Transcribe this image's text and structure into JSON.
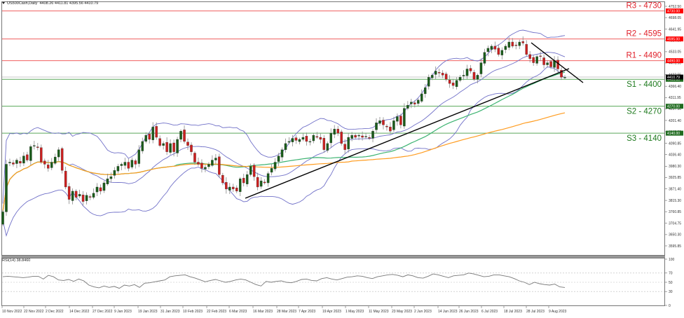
{
  "header": {
    "symbol": "US500Cash,Daily",
    "ohlc": "4408.26 4411.81 4395.56 4410.79"
  },
  "rsi_header": "RSI(14) 38.8460",
  "colors": {
    "resistance": "#f06060",
    "resistance_tag": "#ff0000",
    "support": "#5aa85a",
    "support_tag": "#1f6b1f",
    "support_label": "#1e7a1e",
    "resistance_label": "#e0202a",
    "bull": "#1a5c1a",
    "bear": "#cc1f1f",
    "wick": "#888888",
    "bollinger": "#7070c8",
    "ma_fast": "#3cb371",
    "ma_slow": "#ff9c20",
    "trendline": "#000000",
    "rsi_line": "#777777",
    "current_price_line": "#c8c8c8"
  },
  "chart_data": [
    {
      "type": "candlestick",
      "title": "US500Cash,Daily",
      "subtitle": "4408.26 4411.81 4395.56 4410.79",
      "ylim": [
        3595.85,
        4780
      ],
      "yticks": [
        4752.5,
        4698.05,
        4641.95,
        4587.5,
        4533.05,
        4478.9,
        4422.55,
        4366.4,
        4311.95,
        4257.5,
        4201.4,
        4146.9,
        4090.85,
        4036.4,
        3980.3,
        3925.85,
        3871.4,
        3815.3,
        3760.85,
        3704.75,
        3650.3,
        3595.85
      ],
      "xticks": [
        "10 Nov 2022",
        "22 Nov 2022",
        "2 Dec 2022",
        "14 Dec 2022",
        "27 Dec 2022",
        "9 Jan 2023",
        "19 Jan 2023",
        "31 Jan 2023",
        "10 Feb 2023",
        "22 Feb 2023",
        "6 Mar 2023",
        "16 Mar 2023",
        "28 Mar 2023",
        "7 Apr 2023",
        "19 Apr 2023",
        "1 May 2023",
        "11 May 2023",
        "23 May 2023",
        "2 Jun 2023",
        "14 Jun 2023",
        "26 Jun 2023",
        "6 Jul 2023",
        "18 Jul 2023",
        "28 Jul 2023",
        "9 Aug 2023"
      ],
      "levels": [
        {
          "name": "R3",
          "label": "R3 - 4730",
          "value": 4730.0,
          "tag": "4730.00",
          "kind": "resistance"
        },
        {
          "name": "R2",
          "label": "R2 - 4595",
          "value": 4595.0,
          "tag": "4595.00",
          "kind": "resistance"
        },
        {
          "name": "R1",
          "label": "R1 - 4490",
          "value": 4490.0,
          "tag": "4490.00",
          "kind": "resistance"
        },
        {
          "name": "S1",
          "label": "S1 - 4400",
          "value": 4400.0,
          "tag": "4400.00",
          "kind": "support"
        },
        {
          "name": "S2",
          "label": "S2 - 4270",
          "value": 4270.0,
          "tag": "4270.00",
          "kind": "support"
        },
        {
          "name": "S3",
          "label": "S3 - 4140",
          "value": 4140.0,
          "tag": "4140.00",
          "kind": "support"
        }
      ],
      "current_price": 4410.79,
      "indicators": [
        "Bollinger Bands (upper/middle/lower)",
        "Moving average fast (green)",
        "Moving average slow (orange)"
      ],
      "trendlines": [
        {
          "name": "ascending support",
          "from": [
            "16 Mar 2023",
            3860
          ],
          "to": [
            "11 Aug 2023",
            4470
          ]
        },
        {
          "name": "descending resistance",
          "from": [
            "27 Jul 2023",
            4600
          ],
          "to": [
            "16 Aug 2023",
            4400
          ]
        }
      ],
      "approx_closes": [
        3760,
        3990,
        4000,
        3990,
        4010,
        3995,
        4030,
        4010,
        4075,
        4080,
        4070,
        4000,
        3990,
        3970,
        4000,
        4025,
        4060,
        3960,
        3880,
        3820,
        3860,
        3830,
        3845,
        3810,
        3840,
        3830,
        3850,
        3880,
        3860,
        3900,
        3920,
        3930,
        3960,
        3980,
        3990,
        4000,
        3970,
        4010,
        3990,
        4060,
        4100,
        4130,
        4110,
        4170,
        4120,
        4080,
        4090,
        4050,
        4090,
        4050,
        4110,
        4150,
        4100,
        4080,
        4050,
        4000,
        3990,
        3970,
        3975,
        3990,
        4010,
        4020,
        3940,
        3900,
        3870,
        3880,
        3870,
        3860,
        3920,
        3900,
        3940,
        3980,
        3930,
        3880,
        3910,
        3900,
        3945,
        3970,
        4000,
        4030,
        4060,
        4090,
        4100,
        4115,
        4105,
        4110,
        4120,
        4100,
        4100,
        4130,
        4120,
        4110,
        4060,
        4090,
        4140,
        4160,
        4140,
        4090,
        4060,
        4120,
        4130,
        4120,
        4130,
        4120,
        4125,
        4115,
        4150,
        4190,
        4200,
        4180,
        4170,
        4150,
        4200,
        4220,
        4180,
        4260,
        4275,
        4290,
        4280,
        4300,
        4330,
        4360,
        4410,
        4420,
        4440,
        4430,
        4420,
        4400,
        4380,
        4370,
        4395,
        4410,
        4420,
        4450,
        4440,
        4400,
        4420,
        4480,
        4530,
        4550,
        4560,
        4545,
        4520,
        4540,
        4560,
        4580,
        4560,
        4565,
        4580,
        4575,
        4520,
        4500,
        4480,
        4510,
        4510,
        4470,
        4480,
        4460,
        4490,
        4450,
        4410,
        4410
      ]
    },
    {
      "type": "line",
      "title": "RSI(14) 38.8460",
      "ylim": [
        0,
        100
      ],
      "yticks": [
        100,
        70,
        50,
        30,
        0
      ],
      "grid_levels": [
        70,
        50,
        30
      ],
      "last_value": 38.846,
      "approx_values": [
        62,
        63,
        62,
        61,
        60,
        61,
        63,
        63,
        57,
        65,
        62,
        55,
        54,
        56,
        52,
        57,
        53,
        44,
        40,
        38,
        42,
        39,
        41,
        37,
        44,
        42,
        45,
        39,
        48,
        49,
        51,
        53,
        55,
        62,
        64,
        65,
        66,
        62,
        59,
        55,
        51,
        54,
        56,
        53,
        50,
        52,
        55,
        57,
        55,
        50,
        45,
        42,
        52,
        50,
        52,
        53,
        50,
        49,
        52,
        56,
        57,
        54,
        53,
        58,
        60,
        57,
        55,
        58,
        61,
        62,
        64,
        63,
        60,
        58,
        62,
        64,
        66,
        67,
        65,
        62,
        66,
        64,
        60,
        59,
        63,
        68,
        66,
        63,
        60,
        64,
        65,
        66,
        70,
        68,
        65,
        62,
        63,
        66,
        66,
        64,
        62,
        58,
        53,
        50,
        45,
        50,
        47,
        45,
        44,
        46,
        40,
        38.8
      ]
    }
  ]
}
